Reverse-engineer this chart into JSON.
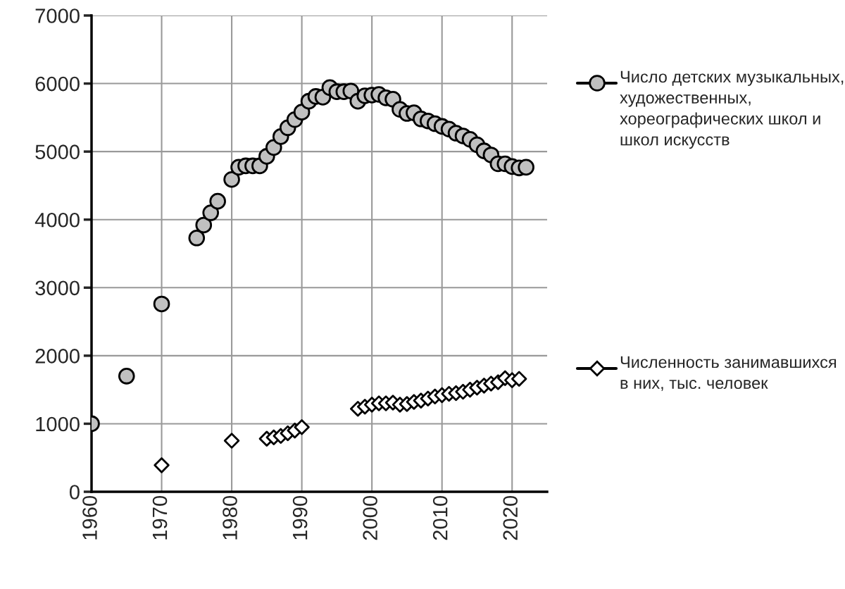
{
  "chart_data": {
    "type": "scatter",
    "xlim": [
      1960,
      2025
    ],
    "xticks": [
      1960,
      1970,
      1980,
      1990,
      2000,
      2010,
      2020
    ],
    "ylim": [
      0,
      7000
    ],
    "yticks": [
      0,
      1000,
      2000,
      3000,
      4000,
      5000,
      6000,
      7000
    ],
    "grid": true,
    "legend": "right",
    "series": [
      {
        "name": "Число детских музыкальных, художественных, хореографических школ и школ искусств",
        "color": "#c0c0c0",
        "marker": "circle",
        "x": [
          1960,
          1965,
          1970,
          1975,
          1976,
          1977,
          1978,
          1980,
          1981,
          1982,
          1983,
          1984,
          1985,
          1986,
          1987,
          1988,
          1989,
          1990,
          1991,
          1992,
          1993,
          1994,
          1995,
          1996,
          1997,
          1998,
          1999,
          2000,
          2001,
          2002,
          2003,
          2004,
          2005,
          2006,
          2007,
          2008,
          2009,
          2010,
          2011,
          2012,
          2013,
          2014,
          2015,
          2016,
          2017,
          2018,
          2019,
          2020,
          2021,
          2022
        ],
        "values": [
          1000,
          1700,
          2760,
          3730,
          3920,
          4100,
          4270,
          4590,
          4770,
          4790,
          4790,
          4790,
          4930,
          5060,
          5220,
          5350,
          5470,
          5580,
          5740,
          5810,
          5800,
          5940,
          5880,
          5880,
          5890,
          5740,
          5820,
          5830,
          5840,
          5790,
          5770,
          5620,
          5560,
          5570,
          5480,
          5450,
          5410,
          5370,
          5330,
          5270,
          5230,
          5180,
          5100,
          5010,
          4950,
          4820,
          4820,
          4780,
          4760,
          4770
        ]
      },
      {
        "name": "Численность занимавшихся в них, тыс. человек",
        "color": "#ffffff",
        "marker": "diamond",
        "x": [
          1970,
          1980,
          1985,
          1986,
          1987,
          1988,
          1989,
          1990,
          1998,
          1999,
          2000,
          2001,
          2002,
          2003,
          2004,
          2005,
          2006,
          2007,
          2008,
          2009,
          2010,
          2011,
          2012,
          2013,
          2014,
          2015,
          2016,
          2017,
          2018,
          2019,
          2020,
          2021
        ],
        "values": [
          390,
          750,
          780,
          800,
          820,
          860,
          900,
          950,
          1220,
          1250,
          1280,
          1300,
          1300,
          1310,
          1280,
          1290,
          1320,
          1340,
          1370,
          1400,
          1420,
          1440,
          1450,
          1470,
          1500,
          1530,
          1560,
          1590,
          1610,
          1670,
          1640,
          1660
        ]
      }
    ]
  }
}
